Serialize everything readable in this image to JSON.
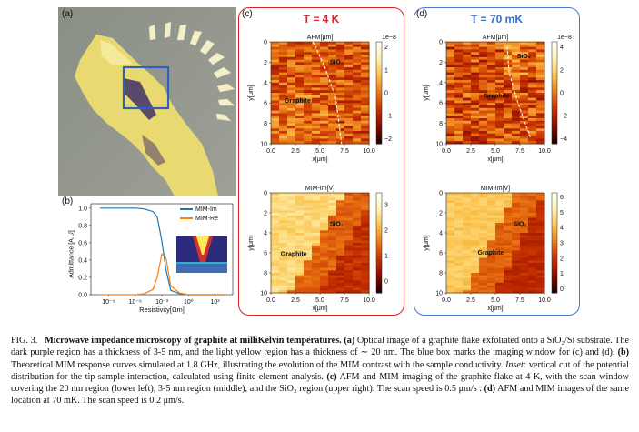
{
  "panels": {
    "a": {
      "label": "(a)"
    },
    "b": {
      "label": "(b)",
      "ylabel": "Admittance [A.U]",
      "xlabel": "Resistivity[Ωm]",
      "legend": [
        "MIM-Im",
        "MIM-Re"
      ],
      "yticks": [
        "0.0",
        "0.2",
        "0.4",
        "0.6",
        "0.8",
        "1.0"
      ],
      "xticks": [
        "10⁻⁹",
        "10⁻⁶",
        "10⁻³",
        "10⁰",
        "10³"
      ]
    },
    "c": {
      "label": "(c)",
      "title": "T = 4 K"
    },
    "d": {
      "label": "(d)",
      "title": "T = 70 mK"
    }
  },
  "maps": {
    "c_afm": {
      "title": "AFM[μm]",
      "scale": "1e−8",
      "cbar": [
        "2",
        "1",
        "0",
        "−1",
        "−2"
      ]
    },
    "c_mim": {
      "title": "MIM-Im[V]",
      "cbar": [
        "3",
        "2",
        "1",
        "0"
      ]
    },
    "d_afm": {
      "title": "AFM[μm]",
      "scale": "1e−8",
      "cbar": [
        "4",
        "2",
        "0",
        "−2",
        "−4"
      ]
    },
    "d_mim": {
      "title": "MIM-Im[V]",
      "cbar": [
        "6",
        "5",
        "4",
        "3",
        "2",
        "1",
        "0"
      ]
    },
    "yticks": [
      "0",
      "2",
      "4",
      "6",
      "8",
      "10"
    ],
    "xticks": [
      "0.0",
      "2.5",
      "5.0",
      "7.5",
      "10.0"
    ],
    "xlabel": "x[μm]",
    "ylabel": "y[μm]",
    "graphite": "Graphite",
    "sio2": "SiO₂"
  },
  "caption": {
    "fig": "FIG. 3.",
    "title": "Microwave impedance microscopy of graphite at milliKelvin temperatures.",
    "a_label": "(a)",
    "a_text": "Optical image of a graphite flake exfoliated onto a SiO₂/Si substrate. The dark purple region has a thickness of 3-5 nm, and the light yellow region has a thickness of ∼ 20 nm. The blue box marks the imaging window for (c) and (d).",
    "b_label": "(b)",
    "b_text1": "Theoretical MIM response curves simulated at 1.8 GHz, illustrating the evolution of the MIM contrast with the sample conductivity.",
    "b_inset": "Inset:",
    "b_text2": "vertical cut of the potential distribution for the tip-sample interaction, calculated using finite-element analysis.",
    "c_label": "(c)",
    "c_text": "AFM and MIM imaging of the graphite flake at 4 K, with the scan window covering the 20 nm region (lower left), 3-5 nm region (middle), and the SiO₂ region (upper right). The scan speed is 0.5 μm/s .",
    "d_label": "(d)",
    "d_text": "AFM and MIM images of the same location at 70 mK. The scan speed is 0.2 μm/s."
  },
  "chart_data": {
    "type": "line",
    "xscale": "log",
    "x": [
      1e-10,
      1e-08,
      1e-06,
      1e-05,
      0.0001,
      0.0003,
      0.001,
      0.003,
      0.01,
      0.1,
      1,
      10,
      100,
      1000,
      10000
    ],
    "series": [
      {
        "name": "MIM-Im",
        "values": [
          1.0,
          1.0,
          1.0,
          0.99,
          0.96,
          0.9,
          0.62,
          0.28,
          0.05,
          0.01,
          0.0,
          0.0,
          0.0,
          0.0,
          0.0
        ]
      },
      {
        "name": "MIM-Re",
        "values": [
          0.0,
          0.0,
          0.0,
          0.01,
          0.06,
          0.2,
          0.47,
          0.42,
          0.1,
          0.02,
          0.0,
          0.0,
          0.0,
          0.0,
          0.0
        ]
      }
    ],
    "ylabel": "Admittance [A.U]",
    "xlabel": "Resistivity[Ωm]",
    "ylim": [
      0,
      1.05
    ],
    "colors": {
      "MIM-Im": "#1f77b4",
      "MIM-Re": "#ff7f0e"
    }
  }
}
